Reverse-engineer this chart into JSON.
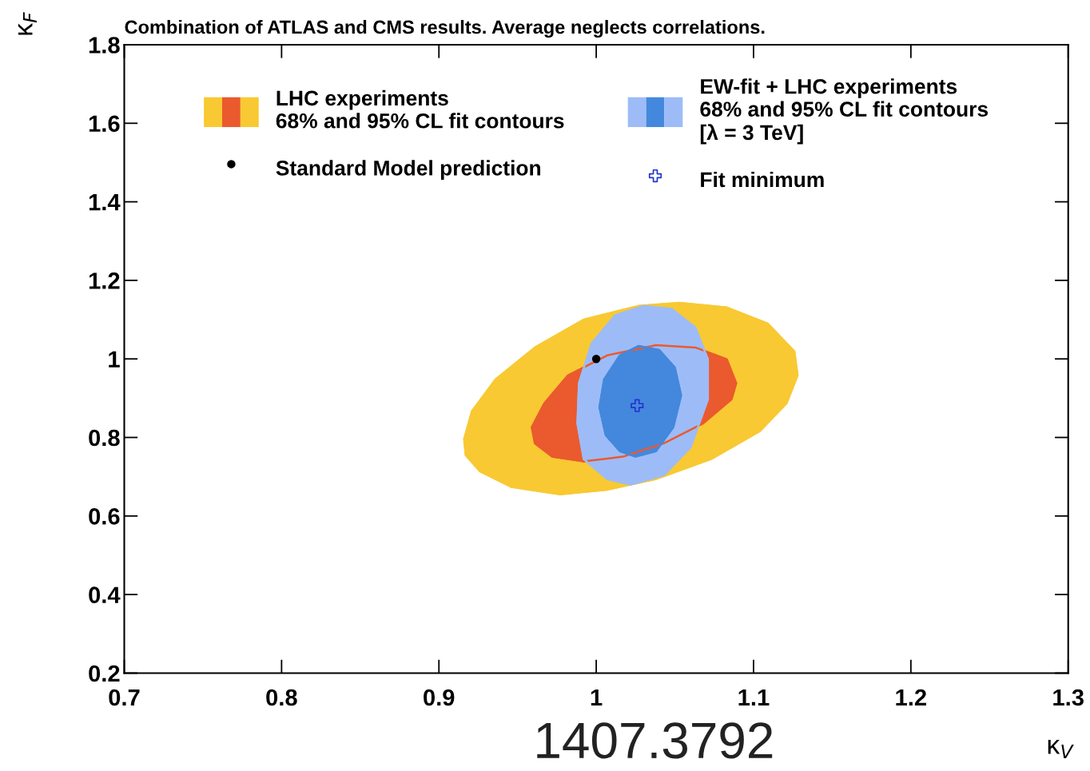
{
  "chart_data": {
    "type": "area",
    "title": "Combination of ATLAS and CMS results. Average neglects correlations.",
    "xlabel": "κ$_{V}$",
    "ylabel": "κ$_{F}$",
    "xlim": [
      0.7,
      1.3
    ],
    "xticks": [
      0.7,
      0.8,
      0.9,
      1,
      1.1,
      1.2,
      1.3
    ],
    "ylim": [
      0.2,
      1.8
    ],
    "yticks": [
      0.2,
      0.4,
      0.6,
      0.8,
      1,
      1.2,
      1.4,
      1.6,
      1.8
    ],
    "grid": false,
    "legend": "top",
    "annotations": [
      "1407.3792"
    ],
    "series": [
      {
        "name": "LHC experiments\n68% and 95% CL fit contours",
        "color": "#f8c932",
        "x": [
          0.916,
          0.921,
          0.936,
          0.961,
          0.992,
          1.027,
          1.053,
          1.083,
          1.109,
          1.126,
          1.128,
          1.121,
          1.104,
          1.073,
          1.038,
          1.007,
          0.977,
          0.946,
          0.926,
          0.917
        ],
        "values": [
          0.796,
          0.867,
          0.948,
          1.029,
          1.1,
          1.135,
          1.143,
          1.131,
          1.09,
          1.019,
          0.958,
          0.887,
          0.816,
          0.745,
          0.694,
          0.667,
          0.655,
          0.674,
          0.714,
          0.755
        ]
      },
      {
        "color": "#ea5a2e",
        "x": [
          0.959,
          0.967,
          0.982,
          1.007,
          1.038,
          1.063,
          1.083,
          1.089,
          1.086,
          1.068,
          1.043,
          1.017,
          0.992,
          0.972,
          0.961
        ],
        "values": [
          0.826,
          0.887,
          0.958,
          1.009,
          1.035,
          1.029,
          0.999,
          0.938,
          0.897,
          0.836,
          0.785,
          0.751,
          0.739,
          0.751,
          0.785
        ]
      },
      {
        "name": "EW-fit + LHC experiments\n68% and 95% CL fit contours\n[λ = 3 TeV]",
        "color": "#9dbcf7",
        "x": [
          1.03,
          1.012,
          0.997,
          0.989,
          0.988,
          0.992,
          1.007,
          1.022,
          1.043,
          1.06,
          1.071,
          1.071,
          1.063,
          1.048
        ],
        "values": [
          1.135,
          1.111,
          1.039,
          0.938,
          0.836,
          0.745,
          0.694,
          0.68,
          0.704,
          0.775,
          0.897,
          0.999,
          1.08,
          1.127
        ]
      },
      {
        "color": "#4488dd",
        "x": [
          1.027,
          1.015,
          1.005,
          1.002,
          1.006,
          1.015,
          1.025,
          1.038,
          1.049,
          1.054,
          1.05,
          1.04
        ],
        "values": [
          1.033,
          1.009,
          0.948,
          0.877,
          0.806,
          0.765,
          0.751,
          0.765,
          0.826,
          0.907,
          0.978,
          1.023
        ]
      },
      {
        "name": "Standard Model prediction",
        "type": "scatter",
        "marker": "circle",
        "color": "#000000",
        "x": [
          1.0
        ],
        "values": [
          1.0
        ]
      },
      {
        "name": "Fit minimum",
        "type": "scatter",
        "marker": "cross",
        "color": "#2233cc",
        "x": [
          1.026
        ],
        "values": [
          0.881
        ]
      }
    ]
  }
}
